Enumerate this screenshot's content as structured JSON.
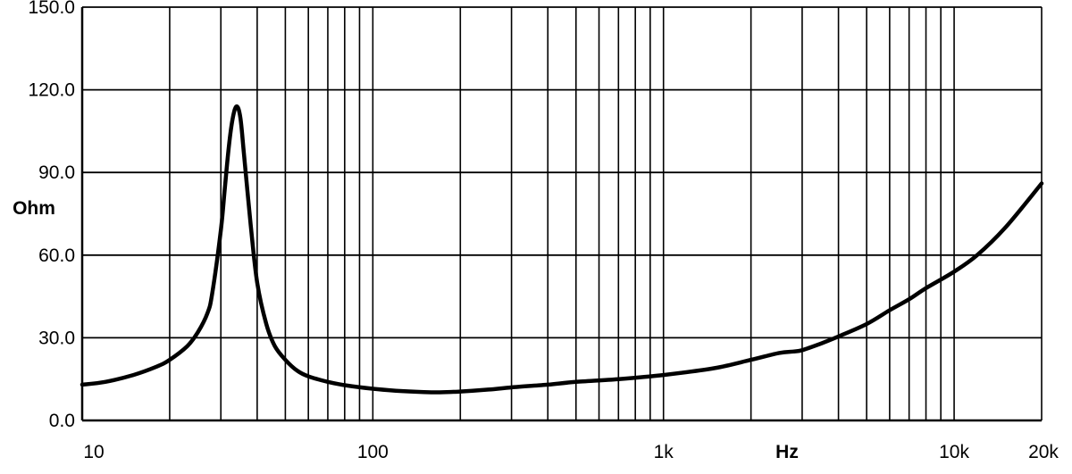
{
  "chart_data": {
    "type": "line",
    "title": "",
    "xlabel": "Hz",
    "ylabel": "Ohm",
    "x_scale": "log",
    "xlim": [
      10,
      20000
    ],
    "ylim": [
      0,
      150
    ],
    "grid": true,
    "legend": "none",
    "x_tick_labels": [
      {
        "value": 10,
        "label": "10"
      },
      {
        "value": 100,
        "label": "100"
      },
      {
        "value": 1000,
        "label": "1k"
      },
      {
        "value": 10000,
        "label": "10k"
      },
      {
        "value": 20000,
        "label": "20k"
      }
    ],
    "x_gridlines": [
      10,
      20,
      30,
      40,
      50,
      60,
      70,
      80,
      90,
      100,
      200,
      300,
      400,
      500,
      600,
      700,
      800,
      900,
      1000,
      2000,
      3000,
      4000,
      5000,
      6000,
      7000,
      8000,
      9000,
      10000,
      20000
    ],
    "y_tick_labels": [
      {
        "value": 0,
        "label": "0.0"
      },
      {
        "value": 30,
        "label": "30.0"
      },
      {
        "value": 60,
        "label": "60.0"
      },
      {
        "value": 90,
        "label": "90.0"
      },
      {
        "value": 120,
        "label": "120.0"
      },
      {
        "value": 150,
        "label": "150.0"
      }
    ],
    "series": [
      {
        "color": "#000000",
        "x": [
          10,
          12,
          15,
          18,
          20,
          23,
          25,
          27,
          28,
          30,
          31,
          32,
          33,
          34,
          35,
          36,
          38,
          40,
          43,
          46,
          50,
          55,
          60,
          70,
          80,
          100,
          120,
          150,
          170,
          200,
          250,
          300,
          400,
          500,
          700,
          1000,
          1500,
          2000,
          2500,
          2800,
          3000,
          3500,
          4000,
          5000,
          6000,
          7000,
          8000,
          10000,
          12000,
          15000,
          20000
        ],
        "y": [
          13,
          14,
          16.5,
          19.5,
          22,
          27,
          32,
          39,
          46,
          69,
          85,
          100,
          110,
          114,
          110,
          97,
          71,
          50,
          35,
          27,
          22,
          18,
          16,
          14,
          12.8,
          11.5,
          10.8,
          10.3,
          10.2,
          10.5,
          11.2,
          12,
          13,
          14,
          15,
          16.5,
          19,
          22,
          24.5,
          25,
          25.5,
          28,
          30.5,
          35,
          40,
          44,
          48,
          54,
          60,
          70,
          86
        ]
      }
    ]
  }
}
